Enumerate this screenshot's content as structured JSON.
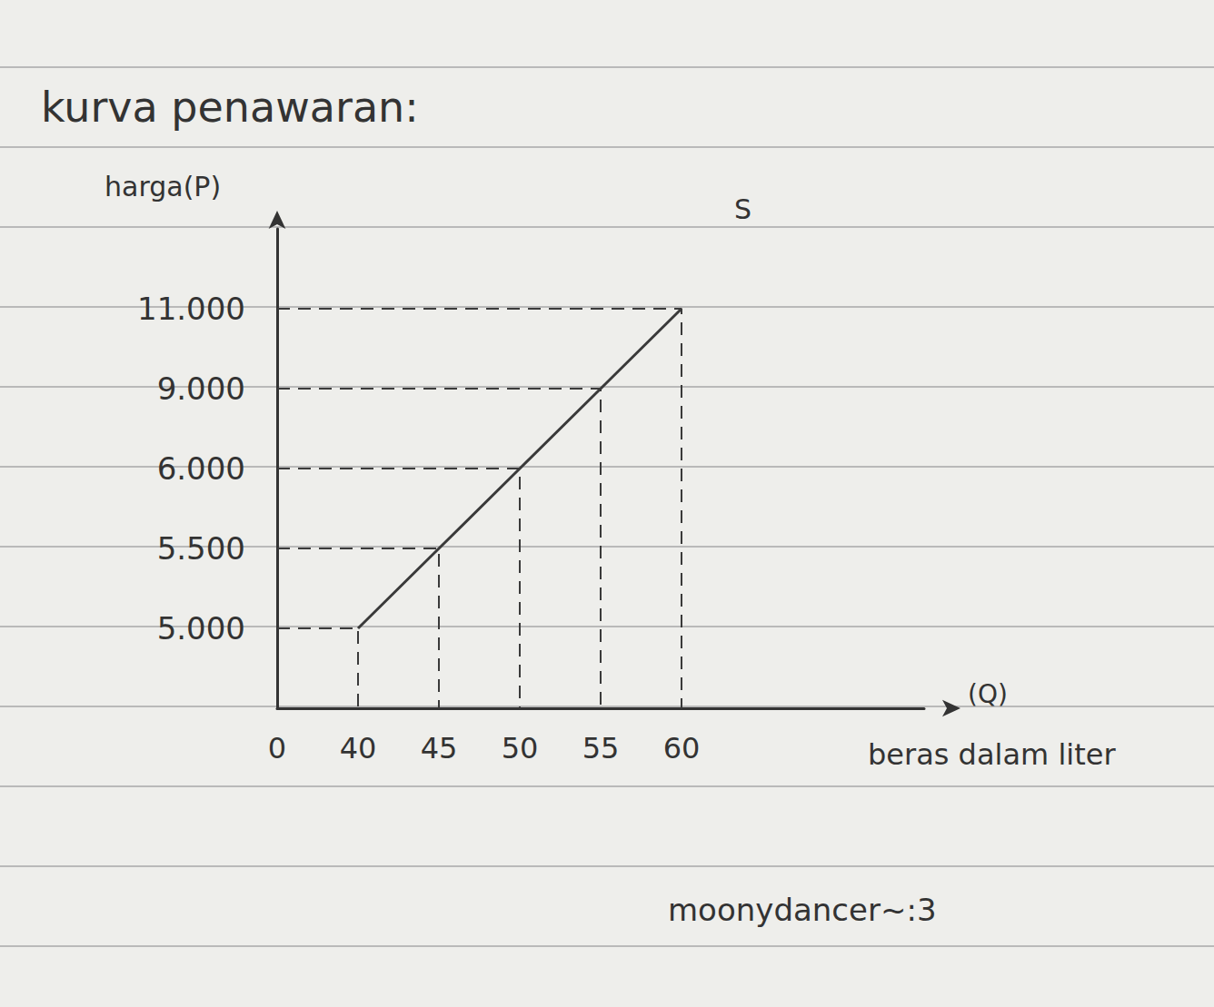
{
  "chart_data": {
    "type": "line",
    "title": "kurva penawaran:",
    "y_label": "harga(P)",
    "x_label": "(Q)",
    "x_caption": "beras dalam liter",
    "annotation": "moonydancer~:3",
    "x": [
      40,
      45,
      50,
      55,
      60
    ],
    "series": [
      {
        "name": "S",
        "color": "#3a3a3a",
        "values": [
          5000,
          5500,
          6000,
          9000,
          11000
        ]
      }
    ],
    "xticks": [
      0,
      40,
      45,
      50,
      55,
      60
    ],
    "yticks": [
      {
        "value": 5000,
        "label": "5.000"
      },
      {
        "value": 5500,
        "label": "5.500"
      },
      {
        "value": 6000,
        "label": "6.000"
      },
      {
        "value": 9000,
        "label": "9.000"
      },
      {
        "value": 11000,
        "label": "11.000"
      }
    ],
    "grid": false,
    "line_style": "solid"
  }
}
